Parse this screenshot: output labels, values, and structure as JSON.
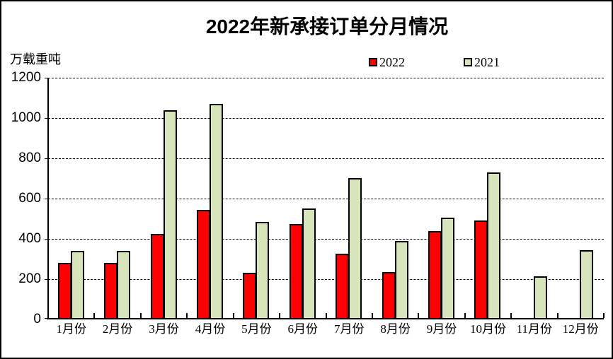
{
  "title": "2022年新承接订单分月情况",
  "unit_label": "万载重吨",
  "legend": {
    "items": [
      {
        "label": "2022",
        "color": "#FF0000"
      },
      {
        "label": "2021",
        "color": "#D7E4BC"
      }
    ],
    "position": "top"
  },
  "chart_data": {
    "type": "bar",
    "title": "2022年新承接订单分月情况",
    "ylabel": "万载重吨",
    "categories": [
      "1月份",
      "2月份",
      "3月份",
      "4月份",
      "5月份",
      "6月份",
      "7月份",
      "8月份",
      "9月份",
      "10月份",
      "11月份",
      "12月份"
    ],
    "series": [
      {
        "name": "2022",
        "color": "#FF0000",
        "values": [
          280,
          280,
          425,
          545,
          230,
          475,
          325,
          235,
          440,
          490,
          0,
          0
        ]
      },
      {
        "name": "2021",
        "color": "#D7E4BC",
        "values": [
          340,
          340,
          1040,
          1070,
          485,
          550,
          700,
          390,
          505,
          730,
          215,
          345
        ]
      }
    ],
    "ylim": [
      0,
      1200
    ],
    "ytick_step": 200,
    "yticks": [
      "0",
      "200",
      "400",
      "600",
      "800",
      "1000",
      "1200"
    ],
    "grid": "horizontal-dashed",
    "legend_position": "top-center",
    "bar_border_color": "#000000"
  }
}
